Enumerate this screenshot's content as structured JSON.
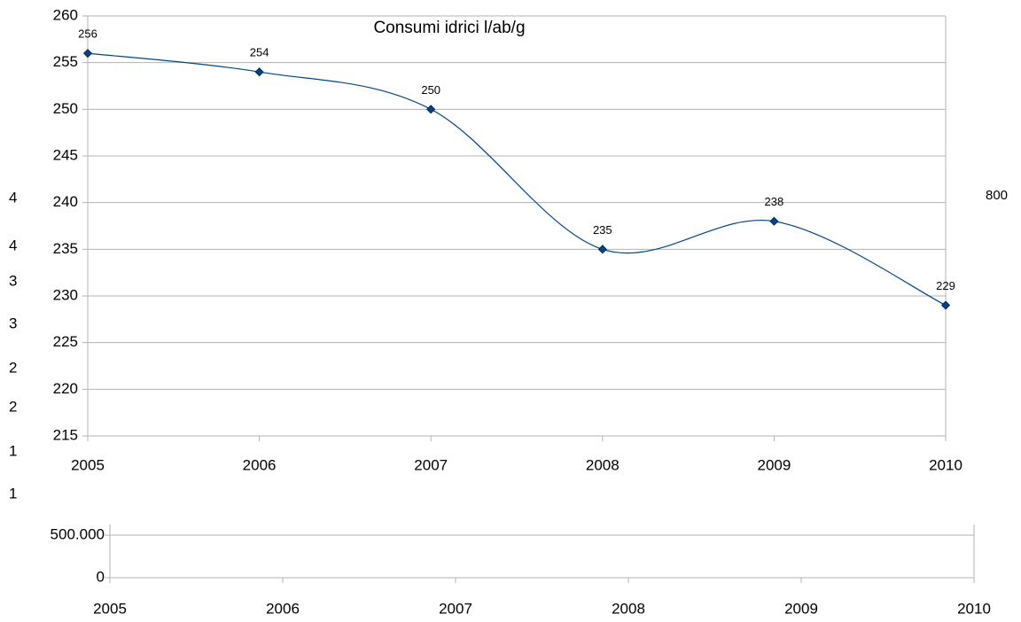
{
  "chart_data": [
    {
      "type": "line",
      "title": "Consumi idrici l/ab/g",
      "x": [
        2005,
        2006,
        2007,
        2008,
        2009,
        2010
      ],
      "series": [
        {
          "color": "#004586",
          "values": [
            256,
            254,
            250,
            235,
            238,
            229
          ]
        }
      ],
      "xlim": [
        2005,
        2010
      ],
      "xticks": [
        2005,
        2006,
        2007,
        2008,
        2009,
        2010
      ],
      "ylim": [
        215,
        260
      ],
      "yticks": [
        215,
        220,
        225,
        230,
        235,
        240,
        245,
        250,
        255,
        260
      ],
      "grid": true,
      "smooth": true,
      "data_labels": true
    },
    {
      "type": "line",
      "series": [],
      "xlim": [
        2005,
        2010
      ],
      "xticks": [
        2005,
        2006,
        2007,
        2008,
        2009,
        2010
      ],
      "ylim": [
        0,
        625000
      ],
      "yticks": [
        0,
        {
          "value": 500000,
          "label": "500.000"
        }
      ],
      "grid": true
    },
    {
      "type": "labels",
      "left_labels": [
        "4",
        "4",
        "3",
        "3",
        "2",
        "2",
        "1",
        "1"
      ],
      "right_labels": [
        "800"
      ]
    }
  ]
}
